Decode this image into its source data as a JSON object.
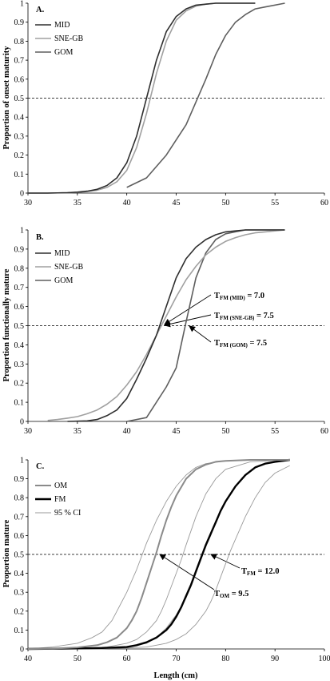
{
  "chart_data": [
    {
      "type": "line",
      "panel_label": "A.",
      "ylabel": "Proportion of onset maturity",
      "xlabel": "",
      "xlim": [
        30,
        60
      ],
      "ylim": [
        0,
        1
      ],
      "x_ticks": [
        "30",
        "35",
        "40",
        "45",
        "50",
        "55",
        "60"
      ],
      "y_ticks": [
        "0",
        "0.1",
        "0.2",
        "0.3",
        "0.4",
        "0.5",
        "0.6",
        "0.7",
        "0.8",
        "0.9",
        "1"
      ],
      "grid": false,
      "legend_position": "top-left",
      "reference_line": {
        "y": 0.5,
        "style": "dashed"
      },
      "series": [
        {
          "name": "MID",
          "color": "#2e2e2e",
          "width": 1.6,
          "x": [
            30,
            32,
            34,
            35,
            36,
            37,
            38,
            39,
            40,
            41,
            42,
            43,
            44,
            45,
            46,
            47,
            48,
            49,
            50,
            51,
            52,
            53
          ],
          "y": [
            0,
            0,
            0.002,
            0.005,
            0.01,
            0.02,
            0.04,
            0.08,
            0.16,
            0.3,
            0.5,
            0.7,
            0.85,
            0.93,
            0.97,
            0.99,
            0.995,
            1,
            1,
            1,
            1,
            1
          ]
        },
        {
          "name": "SNE-GB",
          "color": "#a0a0a0",
          "width": 1.6,
          "x": [
            30,
            32,
            34,
            35,
            36,
            37,
            38,
            39,
            40,
            41,
            42,
            43,
            44,
            45,
            46,
            47,
            48,
            49,
            50,
            51,
            52,
            53
          ],
          "y": [
            0,
            0,
            0.002,
            0.004,
            0.008,
            0.015,
            0.03,
            0.06,
            0.12,
            0.24,
            0.42,
            0.63,
            0.8,
            0.91,
            0.96,
            0.985,
            0.995,
            1,
            1,
            1,
            1,
            1
          ]
        },
        {
          "name": "GOM",
          "color": "#5e5e5e",
          "width": 1.6,
          "x": [
            40,
            42,
            44,
            46,
            48,
            49,
            50,
            51,
            52,
            53,
            54,
            56
          ],
          "y": [
            0.03,
            0.08,
            0.2,
            0.36,
            0.6,
            0.73,
            0.83,
            0.9,
            0.94,
            0.97,
            0.98,
            1
          ]
        }
      ]
    },
    {
      "type": "line",
      "panel_label": "B.",
      "ylabel": "Proportion functionally mature",
      "xlabel": "",
      "xlim": [
        30,
        60
      ],
      "ylim": [
        0,
        1
      ],
      "x_ticks": [
        "30",
        "35",
        "40",
        "45",
        "50",
        "55",
        "60"
      ],
      "y_ticks": [
        "0",
        "0.1",
        "0.2",
        "0.3",
        "0.4",
        "0.5",
        "0.6",
        "0.7",
        "0.8",
        "0.9",
        "1"
      ],
      "grid": false,
      "legend_position": "top-left",
      "reference_line": {
        "y": 0.5,
        "style": "dashed"
      },
      "series": [
        {
          "name": "MID",
          "color": "#2e2e2e",
          "width": 1.6,
          "x": [
            34,
            36,
            37,
            38,
            39,
            40,
            41,
            42,
            43,
            44,
            45,
            46,
            47,
            48,
            49,
            50,
            51,
            52,
            53,
            54,
            56
          ],
          "y": [
            0,
            0.003,
            0.01,
            0.03,
            0.06,
            0.12,
            0.22,
            0.33,
            0.45,
            0.6,
            0.75,
            0.85,
            0.91,
            0.95,
            0.975,
            0.99,
            0.995,
            1,
            1,
            1,
            1
          ]
        },
        {
          "name": "SNE-GB",
          "color": "#a0a0a0",
          "width": 1.6,
          "x": [
            32,
            33,
            34,
            35,
            36,
            37,
            38,
            39,
            40,
            41,
            42,
            43,
            44,
            45,
            46,
            47,
            48,
            49,
            50,
            51,
            52,
            53,
            54,
            55,
            56
          ],
          "y": [
            0.005,
            0.01,
            0.017,
            0.025,
            0.04,
            0.06,
            0.09,
            0.13,
            0.19,
            0.26,
            0.35,
            0.45,
            0.55,
            0.65,
            0.74,
            0.81,
            0.87,
            0.91,
            0.94,
            0.96,
            0.975,
            0.985,
            0.99,
            0.995,
            1
          ]
        },
        {
          "name": "GOM",
          "color": "#5e5e5e",
          "width": 1.6,
          "x": [
            40,
            42,
            44,
            45,
            46,
            47,
            48,
            49,
            50,
            51,
            52,
            53,
            56
          ],
          "y": [
            0,
            0.02,
            0.18,
            0.28,
            0.52,
            0.75,
            0.88,
            0.95,
            0.98,
            0.99,
            1,
            1,
            1
          ]
        }
      ],
      "annotations": [
        {
          "main": "T",
          "sub": "FM (MID)",
          "rest": " = 7.0",
          "point": [
            43.8,
            0.5
          ]
        },
        {
          "main": "T",
          "sub": "FM (SNE-GB)",
          "rest": " = 7.5",
          "point": [
            43.6,
            0.5
          ]
        },
        {
          "main": "T",
          "sub": "FM (GOM)",
          "rest": " = 7.5",
          "point": [
            46.0,
            0.5
          ]
        }
      ]
    },
    {
      "type": "line",
      "panel_label": "C.",
      "ylabel": "Proportion mature",
      "xlabel": "Length (cm)",
      "xlim": [
        40,
        100
      ],
      "ylim": [
        0,
        1
      ],
      "x_ticks": [
        "40",
        "50",
        "60",
        "70",
        "80",
        "90",
        "100"
      ],
      "y_ticks": [
        "0",
        "0.1",
        "0.2",
        "0.3",
        "0.4",
        "0.5",
        "0.6",
        "0.7",
        "0.8",
        "0.9",
        "1"
      ],
      "grid": false,
      "legend_position": "top-left",
      "reference_line": {
        "y": 0.5,
        "style": "dashed"
      },
      "series": [
        {
          "name": "OM",
          "color": "#8a8a8a",
          "width": 2,
          "x": [
            40,
            45,
            50,
            54,
            56,
            58,
            60,
            61,
            62,
            63,
            64,
            65,
            66,
            67,
            68,
            69,
            70,
            72,
            74,
            76,
            78,
            80,
            85,
            93
          ],
          "y": [
            0,
            0.002,
            0.008,
            0.02,
            0.035,
            0.06,
            0.11,
            0.15,
            0.2,
            0.27,
            0.35,
            0.43,
            0.51,
            0.6,
            0.68,
            0.75,
            0.81,
            0.9,
            0.95,
            0.975,
            0.99,
            0.995,
            1,
            1
          ]
        },
        {
          "name": "FM",
          "color": "#000000",
          "width": 2.4,
          "x": [
            40,
            50,
            55,
            60,
            62,
            64,
            66,
            68,
            69,
            70,
            71,
            72,
            73,
            74,
            75,
            76,
            77,
            78,
            79,
            80,
            82,
            84,
            86,
            88,
            90,
            93
          ],
          "y": [
            0,
            0.003,
            0.005,
            0.01,
            0.02,
            0.035,
            0.06,
            0.1,
            0.13,
            0.17,
            0.22,
            0.28,
            0.34,
            0.41,
            0.48,
            0.55,
            0.61,
            0.67,
            0.73,
            0.78,
            0.86,
            0.92,
            0.96,
            0.98,
            0.99,
            1
          ]
        },
        {
          "name": "95 % CI",
          "color": "#9a9a9a",
          "width": 0.9,
          "x": [
            40,
            45,
            50,
            53,
            55,
            56,
            57,
            58,
            59,
            60,
            61,
            62,
            63,
            64,
            65,
            66,
            67,
            68,
            70,
            72,
            74,
            76,
            80,
            85,
            93
          ],
          "y": [
            0,
            0.01,
            0.03,
            0.06,
            0.09,
            0.12,
            0.15,
            0.2,
            0.25,
            0.3,
            0.36,
            0.42,
            0.49,
            0.56,
            0.62,
            0.68,
            0.73,
            0.78,
            0.86,
            0.92,
            0.96,
            0.98,
            0.995,
            1,
            1
          ]
        }
      ],
      "ci_extra": [
        {
          "color": "#9a9a9a",
          "width": 0.9,
          "x": [
            40,
            50,
            56,
            60,
            62,
            64,
            66,
            67,
            68,
            69,
            70,
            71,
            72,
            74,
            76,
            78,
            80,
            85,
            93
          ],
          "y": [
            0,
            0.002,
            0.01,
            0.03,
            0.05,
            0.09,
            0.15,
            0.2,
            0.26,
            0.33,
            0.4,
            0.47,
            0.55,
            0.7,
            0.82,
            0.9,
            0.95,
            0.99,
            1
          ]
        },
        {
          "color": "#9a9a9a",
          "width": 0.9,
          "x": [
            40,
            55,
            60,
            64,
            66,
            68,
            70,
            72,
            73,
            74,
            75,
            76,
            77,
            78,
            79,
            80,
            82,
            84,
            86,
            88,
            90,
            93
          ],
          "y": [
            0,
            0.003,
            0.01,
            0.03,
            0.06,
            0.11,
            0.18,
            0.27,
            0.33,
            0.4,
            0.47,
            0.54,
            0.6,
            0.67,
            0.73,
            0.78,
            0.86,
            0.92,
            0.96,
            0.98,
            0.99,
            1
          ]
        },
        {
          "color": "#9a9a9a",
          "width": 0.9,
          "x": [
            40,
            55,
            60,
            64,
            66,
            68,
            70,
            72,
            74,
            76,
            77,
            78,
            79,
            80,
            81,
            82,
            84,
            86,
            88,
            90,
            93
          ],
          "y": [
            0,
            0.001,
            0.005,
            0.01,
            0.02,
            0.03,
            0.05,
            0.08,
            0.13,
            0.2,
            0.25,
            0.31,
            0.38,
            0.45,
            0.52,
            0.58,
            0.7,
            0.8,
            0.88,
            0.93,
            0.97
          ]
        }
      ],
      "annotations": [
        {
          "main": "T",
          "sub": "FM",
          "rest": " = 12.0",
          "point": [
            77.0,
            0.5
          ]
        },
        {
          "main": "T",
          "sub": "OM",
          "rest": " = 9.5",
          "point": [
            66.0,
            0.5
          ]
        }
      ]
    }
  ]
}
